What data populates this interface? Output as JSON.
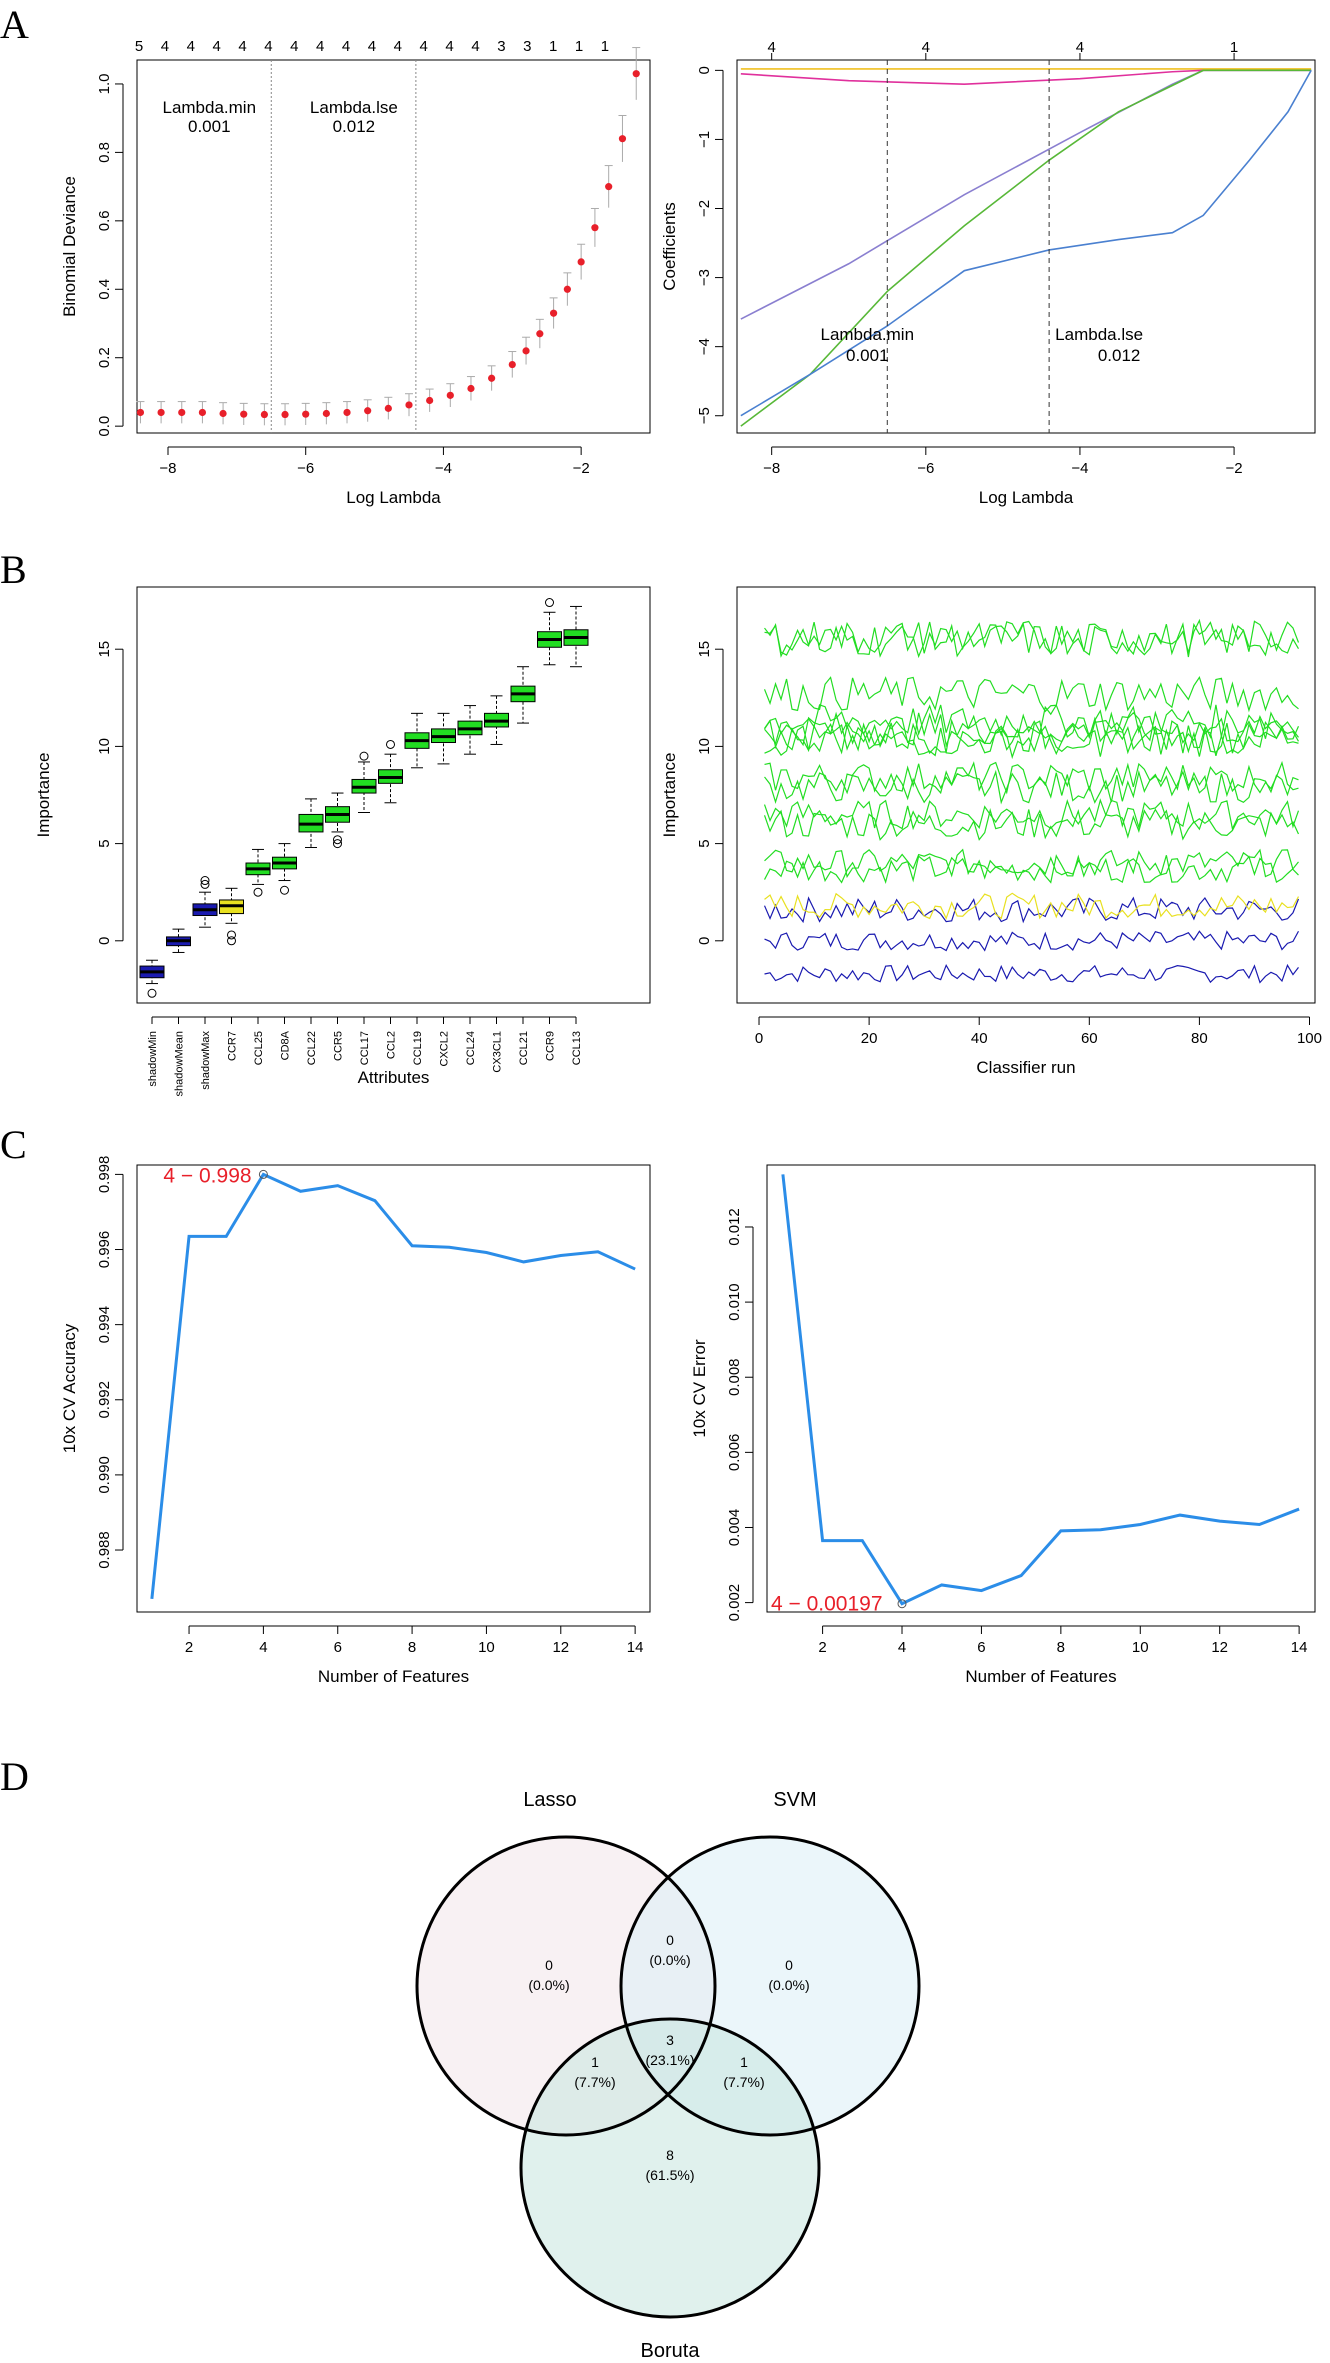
{
  "panels": {
    "a": "A",
    "b": "B",
    "c": "C",
    "d": "D"
  },
  "chart_data": [
    {
      "type": "scatter",
      "xlabel": "Log Lambda",
      "ylabel": "Binomial Deviance",
      "xticks": [
        -8,
        -6,
        -4,
        -2
      ],
      "yticks": [
        0.0,
        0.2,
        0.4,
        0.6,
        0.8,
        1.0
      ],
      "xlim": [
        -8.45,
        -1.0
      ],
      "ylim": [
        -0.02,
        1.07
      ],
      "top_axis_counts": [
        5,
        4,
        4,
        4,
        4,
        4,
        4,
        4,
        4,
        4,
        4,
        4,
        4,
        4,
        3,
        3,
        1,
        1,
        1
      ],
      "annotations": [
        {
          "label": "Lambda.min",
          "value": "0.001",
          "x": -6.5
        },
        {
          "label": "Lambda.lse",
          "value": "0.012",
          "x": -4.4
        }
      ],
      "x": [
        -8.4,
        -8.1,
        -7.8,
        -7.5,
        -7.2,
        -6.9,
        -6.6,
        -6.3,
        -6.0,
        -5.7,
        -5.4,
        -5.1,
        -4.8,
        -4.5,
        -4.2,
        -3.9,
        -3.6,
        -3.3,
        -3.0,
        -2.8,
        -2.6,
        -2.4,
        -2.2,
        -2.0,
        -1.8,
        -1.6,
        -1.4,
        -1.2
      ],
      "y": [
        0.04,
        0.04,
        0.04,
        0.04,
        0.037,
        0.035,
        0.034,
        0.034,
        0.035,
        0.037,
        0.04,
        0.045,
        0.052,
        0.062,
        0.075,
        0.09,
        0.11,
        0.14,
        0.18,
        0.22,
        0.27,
        0.33,
        0.4,
        0.48,
        0.58,
        0.7,
        0.84,
        1.03
      ]
    },
    {
      "type": "line",
      "xlabel": "Log Lambda",
      "ylabel": "Coefficients",
      "xticks": [
        -8,
        -6,
        -4,
        -2
      ],
      "yticks": [
        -5,
        -4,
        -3,
        -2,
        -1,
        0
      ],
      "xlim": [
        -8.45,
        -0.95
      ],
      "ylim": [
        -5.25,
        0.15
      ],
      "top_axis_labels": [
        {
          "x": -8,
          "label": "4"
        },
        {
          "x": -6,
          "label": "4"
        },
        {
          "x": -4,
          "label": "4"
        },
        {
          "x": -2,
          "label": "1"
        }
      ],
      "annotations": [
        {
          "label": "Lambda.min",
          "value": "0.001",
          "x": -6.5
        },
        {
          "label": "Lambda.lse",
          "value": "0.012",
          "x": -4.4
        }
      ],
      "series": [
        {
          "color": "#f0c020",
          "points": [
            [
              -8.4,
              0.02
            ],
            [
              -2.4,
              0.02
            ],
            [
              -1.0,
              0.02
            ]
          ]
        },
        {
          "color": "#e0309c",
          "points": [
            [
              -8.4,
              -0.05
            ],
            [
              -7.0,
              -0.15
            ],
            [
              -5.5,
              -0.2
            ],
            [
              -4.0,
              -0.12
            ],
            [
              -2.8,
              -0.02
            ],
            [
              -2.4,
              0.0
            ],
            [
              -1.0,
              0.0
            ]
          ]
        },
        {
          "color": "#8a7fd0",
          "points": [
            [
              -8.4,
              -3.6
            ],
            [
              -7.0,
              -2.8
            ],
            [
              -5.5,
              -1.8
            ],
            [
              -4.0,
              -0.9
            ],
            [
              -2.8,
              -0.2
            ],
            [
              -2.4,
              0.0
            ],
            [
              -1.0,
              0.0
            ]
          ]
        },
        {
          "color": "#58b838",
          "points": [
            [
              -8.4,
              -5.15
            ],
            [
              -7.5,
              -4.4
            ],
            [
              -6.5,
              -3.2
            ],
            [
              -5.5,
              -2.25
            ],
            [
              -4.4,
              -1.3
            ],
            [
              -3.5,
              -0.6
            ],
            [
              -2.4,
              0.0
            ],
            [
              -1.0,
              0.0
            ]
          ]
        },
        {
          "color": "#4a80d0",
          "points": [
            [
              -8.4,
              -5.0
            ],
            [
              -7.5,
              -4.4
            ],
            [
              -6.5,
              -3.7
            ],
            [
              -5.5,
              -2.9
            ],
            [
              -4.4,
              -2.6
            ],
            [
              -3.5,
              -2.45
            ],
            [
              -2.8,
              -2.35
            ],
            [
              -2.4,
              -2.1
            ],
            [
              -1.8,
              -1.3
            ],
            [
              -1.3,
              -0.6
            ],
            [
              -1.0,
              0.0
            ]
          ]
        }
      ]
    },
    {
      "type": "box",
      "xlabel": "Attributes",
      "ylabel": "Importance",
      "yticks": [
        0,
        5,
        10,
        15
      ],
      "ylim": [
        -3.2,
        18.2
      ],
      "categories": [
        "shadowMin",
        "shadowMean",
        "shadowMax",
        "CCR7",
        "CCL25",
        "CD8A",
        "CCL22",
        "CCR5",
        "CCL17",
        "CCL2",
        "CCL19",
        "CXCL2",
        "CCL24",
        "CX3CL1",
        "CCL21",
        "CCR9",
        "CCL13"
      ],
      "colors": [
        "#1a1ab0",
        "#1a1ab0",
        "#1a1ab0",
        "#e8e020",
        "#22dd22",
        "#22dd22",
        "#22dd22",
        "#22dd22",
        "#22dd22",
        "#22dd22",
        "#22dd22",
        "#22dd22",
        "#22dd22",
        "#22dd22",
        "#22dd22",
        "#22dd22",
        "#22dd22"
      ],
      "boxes": [
        {
          "min": -2.2,
          "q1": -1.9,
          "median": -1.6,
          "q3": -1.3,
          "max": -1.0,
          "outliers": [
            -2.7
          ]
        },
        {
          "min": -0.6,
          "q1": -0.25,
          "median": 0.0,
          "q3": 0.2,
          "max": 0.6,
          "outliers": []
        },
        {
          "min": 0.7,
          "q1": 1.3,
          "median": 1.6,
          "q3": 1.9,
          "max": 2.5,
          "outliers": [
            2.9,
            3.1
          ]
        },
        {
          "min": 0.9,
          "q1": 1.4,
          "median": 1.8,
          "q3": 2.1,
          "max": 2.7,
          "outliers": [
            0.3,
            0.0
          ]
        },
        {
          "min": 2.9,
          "q1": 3.4,
          "median": 3.7,
          "q3": 4.0,
          "max": 4.7,
          "outliers": [
            2.5
          ]
        },
        {
          "min": 3.1,
          "q1": 3.7,
          "median": 4.0,
          "q3": 4.3,
          "max": 5.0,
          "outliers": [
            2.6
          ]
        },
        {
          "min": 4.8,
          "q1": 5.6,
          "median": 6.0,
          "q3": 6.5,
          "max": 7.3,
          "outliers": []
        },
        {
          "min": 5.6,
          "q1": 6.1,
          "median": 6.5,
          "q3": 6.9,
          "max": 7.6,
          "outliers": [
            5.2,
            5.0
          ]
        },
        {
          "min": 6.6,
          "q1": 7.6,
          "median": 7.9,
          "q3": 8.3,
          "max": 9.2,
          "outliers": [
            9.5
          ]
        },
        {
          "min": 7.1,
          "q1": 8.1,
          "median": 8.4,
          "q3": 8.8,
          "max": 9.6,
          "outliers": [
            10.1
          ]
        },
        {
          "min": 8.9,
          "q1": 9.9,
          "median": 10.3,
          "q3": 10.7,
          "max": 11.7,
          "outliers": []
        },
        {
          "min": 9.1,
          "q1": 10.2,
          "median": 10.5,
          "q3": 10.9,
          "max": 11.7,
          "outliers": []
        },
        {
          "min": 9.6,
          "q1": 10.6,
          "median": 10.9,
          "q3": 11.3,
          "max": 12.1,
          "outliers": []
        },
        {
          "min": 10.1,
          "q1": 11.0,
          "median": 11.3,
          "q3": 11.7,
          "max": 12.6,
          "outliers": []
        },
        {
          "min": 11.2,
          "q1": 12.3,
          "median": 12.7,
          "q3": 13.1,
          "max": 14.1,
          "outliers": []
        },
        {
          "min": 14.2,
          "q1": 15.1,
          "median": 15.5,
          "q3": 15.9,
          "max": 16.9,
          "outliers": [
            17.4
          ]
        },
        {
          "min": 14.1,
          "q1": 15.2,
          "median": 15.6,
          "q3": 16.0,
          "max": 17.2,
          "outliers": []
        }
      ]
    },
    {
      "type": "line",
      "xlabel": "Classifier run",
      "ylabel": "Importance",
      "xticks": [
        0,
        20,
        40,
        60,
        80,
        100
      ],
      "yticks": [
        0,
        5,
        10,
        15
      ],
      "xlim": [
        -4,
        101
      ],
      "ylim": [
        -3.2,
        18.2
      ],
      "runs": 98,
      "series": [
        {
          "color": "#1a1ab0",
          "level": -1.7,
          "spread": 0.9
        },
        {
          "color": "#1a1ab0",
          "level": 0.0,
          "spread": 1.0
        },
        {
          "color": "#1a1ab0",
          "level": 1.6,
          "spread": 1.3
        },
        {
          "color": "#e8e020",
          "level": 1.8,
          "spread": 1.3
        },
        {
          "color": "#22dd22",
          "level": 3.7,
          "spread": 1.4
        },
        {
          "color": "#22dd22",
          "level": 4.0,
          "spread": 1.4
        },
        {
          "color": "#22dd22",
          "level": 6.0,
          "spread": 1.6
        },
        {
          "color": "#22dd22",
          "level": 6.5,
          "spread": 1.5
        },
        {
          "color": "#22dd22",
          "level": 7.9,
          "spread": 1.6
        },
        {
          "color": "#22dd22",
          "level": 8.4,
          "spread": 1.6
        },
        {
          "color": "#22dd22",
          "level": 10.3,
          "spread": 1.7
        },
        {
          "color": "#22dd22",
          "level": 10.5,
          "spread": 1.7
        },
        {
          "color": "#22dd22",
          "level": 10.9,
          "spread": 1.7
        },
        {
          "color": "#22dd22",
          "level": 11.3,
          "spread": 1.7
        },
        {
          "color": "#22dd22",
          "level": 12.7,
          "spread": 1.8
        },
        {
          "color": "#22dd22",
          "level": 15.5,
          "spread": 1.8
        },
        {
          "color": "#22dd22",
          "level": 15.6,
          "spread": 1.8
        }
      ]
    },
    {
      "type": "line",
      "xlabel": "Number of Features",
      "ylabel": "10x CV Accuracy",
      "xticks": [
        2,
        4,
        6,
        8,
        10,
        12,
        14
      ],
      "yticks": [
        0.988,
        0.99,
        0.992,
        0.994,
        0.996,
        0.998
      ],
      "ytick_labels": [
        "0.988",
        "0.990",
        "0.992",
        "0.994",
        "0.996",
        "0.998"
      ],
      "xlim": [
        0.6,
        14.4
      ],
      "ylim": [
        0.98635,
        0.99825
      ],
      "x": [
        1,
        2,
        3,
        4,
        5,
        6,
        7,
        8,
        9,
        10,
        11,
        12,
        13,
        14
      ],
      "y": [
        0.9867,
        0.99635,
        0.99635,
        0.998,
        0.99755,
        0.9977,
        0.9973,
        0.9961,
        0.99606,
        0.99592,
        0.99567,
        0.99584,
        0.99594,
        0.99548
      ],
      "color": "#2b8de8",
      "highlight": {
        "x": 4,
        "y": 0.998,
        "label": "4 − 0.998"
      }
    },
    {
      "type": "line",
      "xlabel": "Number of Features",
      "ylabel": "10x CV Error",
      "xticks": [
        2,
        4,
        6,
        8,
        10,
        12,
        14
      ],
      "yticks": [
        0.002,
        0.004,
        0.006,
        0.008,
        0.01,
        0.012
      ],
      "ytick_labels": [
        "0.002",
        "0.004",
        "0.006",
        "0.008",
        "0.010",
        "0.012"
      ],
      "xlim": [
        0.6,
        14.4
      ],
      "ylim": [
        0.00175,
        0.01365
      ],
      "x": [
        1,
        2,
        3,
        4,
        5,
        6,
        7,
        8,
        9,
        10,
        11,
        12,
        13,
        14
      ],
      "y": [
        0.0134,
        0.00365,
        0.00365,
        0.00197,
        0.00247,
        0.00232,
        0.00272,
        0.00391,
        0.00394,
        0.00408,
        0.00433,
        0.00417,
        0.00408,
        0.00449
      ],
      "color": "#2b8de8",
      "highlight": {
        "x": 4,
        "y": 0.00197,
        "label": "4 − 0.00197"
      }
    },
    {
      "type": "venn",
      "sets": [
        {
          "name": "Lasso",
          "color": "#f3e6ea"
        },
        {
          "name": "SVM",
          "color": "#daeef5"
        },
        {
          "name": "Boruta",
          "color": "#c6e6de"
        }
      ],
      "regions": [
        {
          "id": "lasso_only",
          "count": "0",
          "pct": "(0.0%)"
        },
        {
          "id": "lasso_svm",
          "count": "0",
          "pct": "(0.0%)"
        },
        {
          "id": "svm_only",
          "count": "0",
          "pct": "(0.0%)"
        },
        {
          "id": "lasso_boruta",
          "count": "1",
          "pct": "(7.7%)"
        },
        {
          "id": "all",
          "count": "3",
          "pct": "(23.1%)"
        },
        {
          "id": "svm_boruta",
          "count": "1",
          "pct": "(7.7%)"
        },
        {
          "id": "boruta_only",
          "count": "8",
          "pct": "(61.5%)"
        }
      ]
    }
  ]
}
